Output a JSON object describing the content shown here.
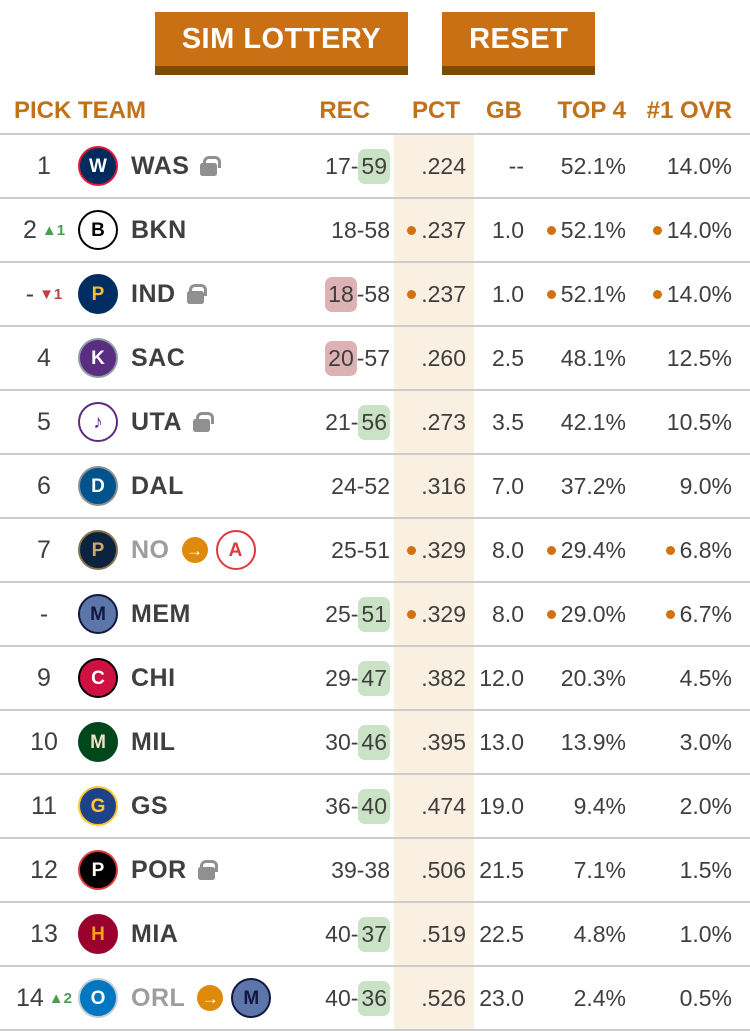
{
  "toolbar": {
    "sim_label": "SIM LOTTERY",
    "reset_label": "RESET"
  },
  "colors": {
    "accent": "#ca7014",
    "accent_dark": "#7d4a0a",
    "header_text": "#c0711a",
    "text": "#3f3f3f",
    "muted": "#9d9d9d",
    "divider": "#cccccc",
    "dot": "#d2720f",
    "hl_green": "#c9e3c4",
    "hl_red": "#ddb2b5",
    "pct_band": "#faf0e1",
    "trend_up": "#4a9e50",
    "trend_down": "#bf4040",
    "arrow_badge": "#e08a0c",
    "lock": "#909090"
  },
  "table": {
    "headers": {
      "pick": "PICK",
      "team": "TEAM",
      "rec": "REC",
      "pct": "PCT",
      "gb": "GB",
      "top4": "TOP 4",
      "ovr": "#1 OVR"
    },
    "rows": [
      {
        "pick": "1",
        "trend": null,
        "team": {
          "abbr": "WAS",
          "locked": true,
          "traded": false,
          "logo": {
            "name": "washington-wizards",
            "bg": "#002b5c",
            "fg": "#ffffff",
            "br": "#e31837",
            "glyph": "W"
          }
        },
        "traded_to": null,
        "rec": {
          "wins": "17",
          "losses": "59",
          "hl": "losses",
          "hl_color": "green"
        },
        "pct": {
          "value": ".224",
          "dot": false
        },
        "gb": "--",
        "top4": {
          "value": "52.1%",
          "dot": false
        },
        "ovr": {
          "value": "14.0%",
          "dot": false
        }
      },
      {
        "pick": "2",
        "trend": {
          "dir": "up",
          "value": "1"
        },
        "team": {
          "abbr": "BKN",
          "locked": false,
          "traded": false,
          "logo": {
            "name": "brooklyn-nets",
            "bg": "#ffffff",
            "fg": "#000000",
            "br": "#000000",
            "glyph": "B"
          }
        },
        "traded_to": null,
        "rec": {
          "wins": "18",
          "losses": "58",
          "hl": null,
          "hl_color": null
        },
        "pct": {
          "value": ".237",
          "dot": true
        },
        "gb": "1.0",
        "top4": {
          "value": "52.1%",
          "dot": true
        },
        "ovr": {
          "value": "14.0%",
          "dot": true
        }
      },
      {
        "pick": "-",
        "trend": {
          "dir": "down",
          "value": "1"
        },
        "team": {
          "abbr": "IND",
          "locked": true,
          "traded": false,
          "logo": {
            "name": "indiana-pacers",
            "bg": "#002d62",
            "fg": "#fdbb30",
            "br": "#002d62",
            "glyph": "P"
          }
        },
        "traded_to": null,
        "rec": {
          "wins": "18",
          "losses": "58",
          "hl": "wins",
          "hl_color": "red"
        },
        "pct": {
          "value": ".237",
          "dot": true
        },
        "gb": "1.0",
        "top4": {
          "value": "52.1%",
          "dot": true
        },
        "ovr": {
          "value": "14.0%",
          "dot": true
        }
      },
      {
        "pick": "4",
        "trend": null,
        "team": {
          "abbr": "SAC",
          "locked": false,
          "traded": false,
          "logo": {
            "name": "sacramento-kings",
            "bg": "#5a2d81",
            "fg": "#ffffff",
            "br": "#8e9ca5",
            "glyph": "K"
          }
        },
        "traded_to": null,
        "rec": {
          "wins": "20",
          "losses": "57",
          "hl": "wins",
          "hl_color": "red"
        },
        "pct": {
          "value": ".260",
          "dot": false
        },
        "gb": "2.5",
        "top4": {
          "value": "48.1%",
          "dot": false
        },
        "ovr": {
          "value": "12.5%",
          "dot": false
        }
      },
      {
        "pick": "5",
        "trend": null,
        "team": {
          "abbr": "UTA",
          "locked": true,
          "traded": false,
          "logo": {
            "name": "utah-jazz",
            "bg": "#ffffff",
            "fg": "#5b2b82",
            "br": "#5b2b82",
            "glyph": "♪"
          }
        },
        "traded_to": null,
        "rec": {
          "wins": "21",
          "losses": "56",
          "hl": "losses",
          "hl_color": "green"
        },
        "pct": {
          "value": ".273",
          "dot": false
        },
        "gb": "3.5",
        "top4": {
          "value": "42.1%",
          "dot": false
        },
        "ovr": {
          "value": "10.5%",
          "dot": false
        }
      },
      {
        "pick": "6",
        "trend": null,
        "team": {
          "abbr": "DAL",
          "locked": false,
          "traded": false,
          "logo": {
            "name": "dallas-mavericks",
            "bg": "#00538c",
            "fg": "#ffffff",
            "br": "#8d9093",
            "glyph": "D"
          }
        },
        "traded_to": null,
        "rec": {
          "wins": "24",
          "losses": "52",
          "hl": null,
          "hl_color": null
        },
        "pct": {
          "value": ".316",
          "dot": false
        },
        "gb": "7.0",
        "top4": {
          "value": "37.2%",
          "dot": false
        },
        "ovr": {
          "value": "9.0%",
          "dot": false
        }
      },
      {
        "pick": "7",
        "trend": null,
        "team": {
          "abbr": "NO",
          "locked": false,
          "traded": true,
          "logo": {
            "name": "new-orleans-pelicans",
            "bg": "#0c2340",
            "fg": "#c8a96e",
            "br": "#85714d",
            "glyph": "P"
          }
        },
        "traded_to": {
          "logo": {
            "name": "atlanta-hawks",
            "bg": "#ffffff",
            "fg": "#e03a3e",
            "br": "#e03a3e",
            "glyph": "A"
          }
        },
        "rec": {
          "wins": "25",
          "losses": "51",
          "hl": null,
          "hl_color": null
        },
        "pct": {
          "value": ".329",
          "dot": true
        },
        "gb": "8.0",
        "top4": {
          "value": "29.4%",
          "dot": true
        },
        "ovr": {
          "value": "6.8%",
          "dot": true
        }
      },
      {
        "pick": "-",
        "trend": null,
        "team": {
          "abbr": "MEM",
          "locked": false,
          "traded": false,
          "logo": {
            "name": "memphis-grizzlies",
            "bg": "#5d76a9",
            "fg": "#12173f",
            "br": "#12173f",
            "glyph": "M"
          }
        },
        "traded_to": null,
        "rec": {
          "wins": "25",
          "losses": "51",
          "hl": "losses",
          "hl_color": "green"
        },
        "pct": {
          "value": ".329",
          "dot": true
        },
        "gb": "8.0",
        "top4": {
          "value": "29.0%",
          "dot": true
        },
        "ovr": {
          "value": "6.7%",
          "dot": true
        }
      },
      {
        "pick": "9",
        "trend": null,
        "team": {
          "abbr": "CHI",
          "locked": false,
          "traded": false,
          "logo": {
            "name": "chicago-bulls",
            "bg": "#ce1141",
            "fg": "#ffffff",
            "br": "#000000",
            "glyph": "C"
          }
        },
        "traded_to": null,
        "rec": {
          "wins": "29",
          "losses": "47",
          "hl": "losses",
          "hl_color": "green"
        },
        "pct": {
          "value": ".382",
          "dot": false
        },
        "gb": "12.0",
        "top4": {
          "value": "20.3%",
          "dot": false
        },
        "ovr": {
          "value": "4.5%",
          "dot": false
        }
      },
      {
        "pick": "10",
        "trend": null,
        "team": {
          "abbr": "MIL",
          "locked": false,
          "traded": false,
          "logo": {
            "name": "milwaukee-bucks",
            "bg": "#00471b",
            "fg": "#eee1c6",
            "br": "#00471b",
            "glyph": "M"
          }
        },
        "traded_to": null,
        "rec": {
          "wins": "30",
          "losses": "46",
          "hl": "losses",
          "hl_color": "green"
        },
        "pct": {
          "value": ".395",
          "dot": false
        },
        "gb": "13.0",
        "top4": {
          "value": "13.9%",
          "dot": false
        },
        "ovr": {
          "value": "3.0%",
          "dot": false
        }
      },
      {
        "pick": "11",
        "trend": null,
        "team": {
          "abbr": "GS",
          "locked": false,
          "traded": false,
          "logo": {
            "name": "golden-state-warriors",
            "bg": "#1d428a",
            "fg": "#ffc72c",
            "br": "#ffc72c",
            "glyph": "G"
          }
        },
        "traded_to": null,
        "rec": {
          "wins": "36",
          "losses": "40",
          "hl": "losses",
          "hl_color": "green"
        },
        "pct": {
          "value": ".474",
          "dot": false
        },
        "gb": "19.0",
        "top4": {
          "value": "9.4%",
          "dot": false
        },
        "ovr": {
          "value": "2.0%",
          "dot": false
        }
      },
      {
        "pick": "12",
        "trend": null,
        "team": {
          "abbr": "POR",
          "locked": true,
          "traded": false,
          "logo": {
            "name": "portland-trail-blazers",
            "bg": "#000000",
            "fg": "#ffffff",
            "br": "#e03a3e",
            "glyph": "P"
          }
        },
        "traded_to": null,
        "rec": {
          "wins": "39",
          "losses": "38",
          "hl": null,
          "hl_color": null
        },
        "pct": {
          "value": ".506",
          "dot": false
        },
        "gb": "21.5",
        "top4": {
          "value": "7.1%",
          "dot": false
        },
        "ovr": {
          "value": "1.5%",
          "dot": false
        }
      },
      {
        "pick": "13",
        "trend": null,
        "team": {
          "abbr": "MIA",
          "locked": false,
          "traded": false,
          "logo": {
            "name": "miami-heat",
            "bg": "#98002e",
            "fg": "#f9a01b",
            "br": "#98002e",
            "glyph": "H"
          }
        },
        "traded_to": null,
        "rec": {
          "wins": "40",
          "losses": "37",
          "hl": "losses",
          "hl_color": "green"
        },
        "pct": {
          "value": ".519",
          "dot": false
        },
        "gb": "22.5",
        "top4": {
          "value": "4.8%",
          "dot": false
        },
        "ovr": {
          "value": "1.0%",
          "dot": false
        }
      },
      {
        "pick": "14",
        "trend": {
          "dir": "up",
          "value": "2"
        },
        "team": {
          "abbr": "ORL",
          "locked": false,
          "traded": true,
          "logo": {
            "name": "orlando-magic",
            "bg": "#0077c0",
            "fg": "#ffffff",
            "br": "#c4ced4",
            "glyph": "O"
          }
        },
        "traded_to": {
          "logo": {
            "name": "memphis-grizzlies",
            "bg": "#5d76a9",
            "fg": "#12173f",
            "br": "#12173f",
            "glyph": "M"
          }
        },
        "rec": {
          "wins": "40",
          "losses": "36",
          "hl": "losses",
          "hl_color": "green"
        },
        "pct": {
          "value": ".526",
          "dot": false
        },
        "gb": "23.0",
        "top4": {
          "value": "2.4%",
          "dot": false
        },
        "ovr": {
          "value": "0.5%",
          "dot": false
        }
      }
    ]
  }
}
